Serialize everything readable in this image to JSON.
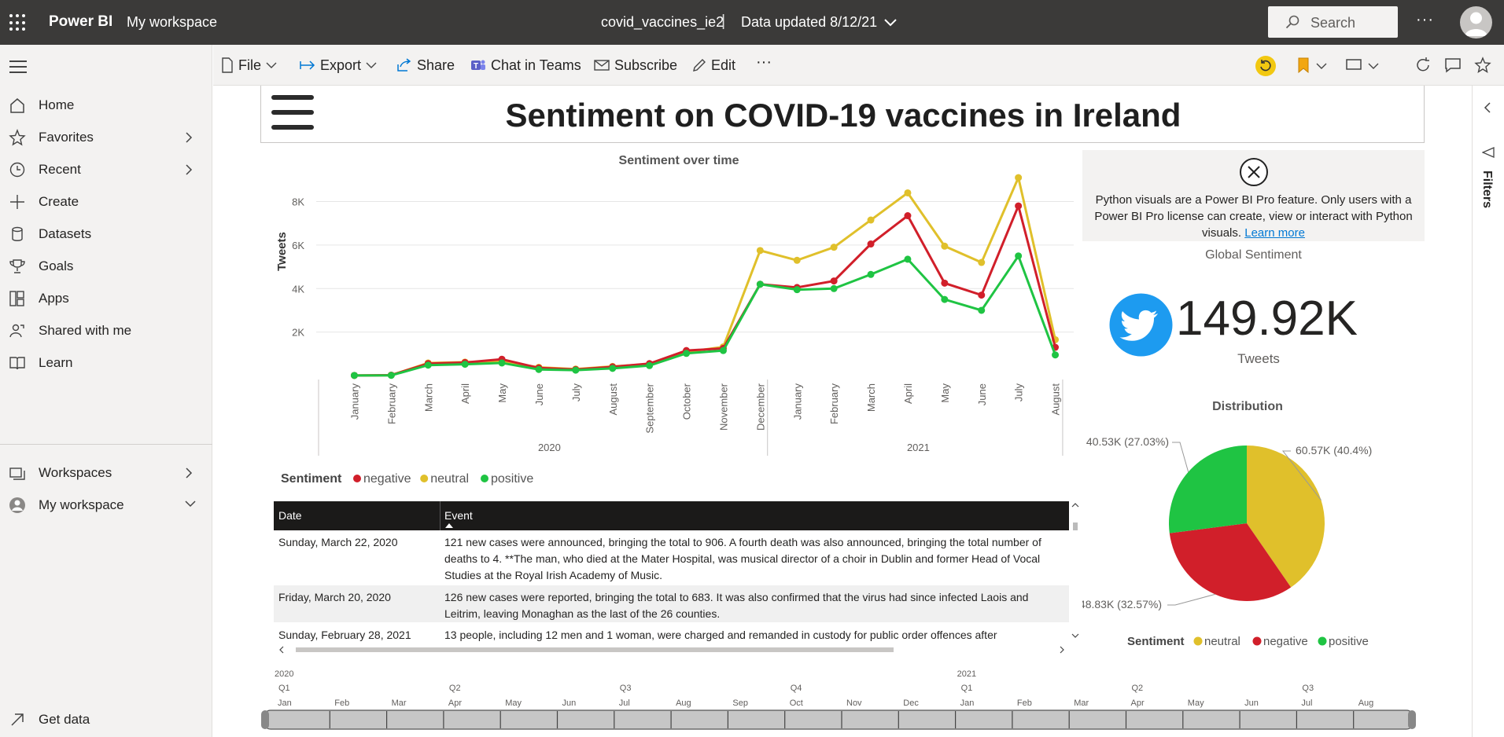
{
  "topbar": {
    "brand": "Power BI",
    "workspace": "My workspace",
    "report_name": "covid_vaccines_ie2",
    "separator": "|",
    "updated": "Data updated 8/12/21",
    "search_placeholder": "Search",
    "more": "···"
  },
  "leftnav": {
    "items": [
      {
        "label": "Home",
        "icon": "home-icon"
      },
      {
        "label": "Favorites",
        "icon": "star-icon"
      },
      {
        "label": "Recent",
        "icon": "clock-icon"
      },
      {
        "label": "Create",
        "icon": "plus-icon"
      },
      {
        "label": "Datasets",
        "icon": "database-icon"
      },
      {
        "label": "Goals",
        "icon": "trophy-icon"
      },
      {
        "label": "Apps",
        "icon": "apps-icon"
      },
      {
        "label": "Shared with me",
        "icon": "shared-icon"
      },
      {
        "label": "Learn",
        "icon": "book-icon"
      }
    ],
    "workspaces": "Workspaces",
    "my_workspace": "My workspace",
    "get_data": "Get data"
  },
  "actionbar": {
    "file": "File",
    "export": "Export",
    "share": "Share",
    "chat": "Chat in Teams",
    "subscribe": "Subscribe",
    "edit": "Edit",
    "more": "···"
  },
  "rightrail": {
    "filters": "Filters"
  },
  "report": {
    "title": "Sentiment on COVID-19 vaccines in Ireland"
  },
  "python_visual": {
    "message": "Python visuals are a Power BI Pro feature. Only users with a Power BI Pro license can create, view or interact with Python visuals.",
    "link": "Learn more"
  },
  "card": {
    "label": "Global Sentiment",
    "value": "149.92K",
    "unit": "Tweets"
  },
  "table": {
    "headers": [
      "Date",
      "Event"
    ],
    "rows": [
      {
        "date": "Sunday, March 22, 2020",
        "event": "121 new cases were announced, bringing the total to 906. A fourth death was also announced, bringing the total number of deaths to 4. **The man, who died at the Mater Hospital, was musical director of a choir in Dublin and former Head of Vocal Studies at the Royal Irish Academy of Music."
      },
      {
        "date": "Friday, March 20, 2020",
        "event": "126 new cases were reported, bringing the total to 683. It was also confirmed that the virus had since infected Laois and Leitrim, leaving Monaghan as the last of the 26 counties."
      },
      {
        "date": "Sunday, February 28, 2021",
        "event": "13 people, including 12 men and 1 woman, were charged and remanded in custody for public order offences after"
      }
    ]
  },
  "colors": {
    "negative": "#d11f2a",
    "neutral": "#e0c02b",
    "positive": "#1fc443",
    "topbar": "#3b3a39"
  },
  "chart_data": [
    {
      "type": "line",
      "title": "Sentiment over time",
      "ylabel": "Tweets",
      "yticks": [
        "2K",
        "4K",
        "6K",
        "8K"
      ],
      "ylim": [
        0,
        9500
      ],
      "x": [
        "January",
        "February",
        "March",
        "April",
        "May",
        "June",
        "July",
        "August",
        "September",
        "October",
        "November",
        "December",
        "January",
        "February",
        "March",
        "April",
        "May",
        "June",
        "July",
        "August"
      ],
      "year_groups": [
        {
          "label": "2020",
          "count": 12
        },
        {
          "label": "2021",
          "count": 8
        }
      ],
      "legend_title": "Sentiment",
      "series": [
        {
          "name": "negative",
          "values": [
            5,
            20,
            550,
            600,
            750,
            350,
            280,
            400,
            550,
            1150,
            1250,
            4200,
            4050,
            4350,
            6050,
            7350,
            4250,
            3700,
            7800,
            1300
          ]
        },
        {
          "name": "neutral",
          "values": [
            5,
            20,
            580,
            620,
            650,
            380,
            300,
            420,
            530,
            1080,
            1320,
            5750,
            5300,
            5900,
            7150,
            8400,
            5950,
            5200,
            9100,
            1650
          ]
        },
        {
          "name": "positive",
          "values": [
            5,
            10,
            480,
            520,
            580,
            280,
            250,
            330,
            460,
            1020,
            1150,
            4200,
            3950,
            4000,
            4650,
            5350,
            3500,
            3000,
            5500,
            950
          ]
        }
      ],
      "grid": true,
      "legend_position": "bottom-left"
    },
    {
      "type": "pie",
      "title": "Distribution",
      "legend_title": "Sentiment",
      "slices": [
        {
          "name": "neutral",
          "value": 60.57,
          "label": "60.57K (40.4%)"
        },
        {
          "name": "negative",
          "value": 48.83,
          "label": "48.83K (32.57%)"
        },
        {
          "name": "positive",
          "value": 40.53,
          "label": "40.53K (27.03%)"
        }
      ],
      "legend_position": "bottom"
    }
  ],
  "timeline": {
    "years": [
      {
        "label": "2020",
        "at": 0
      },
      {
        "label": "2021",
        "at": 12
      }
    ],
    "quarters": [
      {
        "label": "Q1",
        "at": 0
      },
      {
        "label": "Q2",
        "at": 3
      },
      {
        "label": "Q3",
        "at": 6
      },
      {
        "label": "Q4",
        "at": 9
      },
      {
        "label": "Q1",
        "at": 12
      },
      {
        "label": "Q2",
        "at": 15
      },
      {
        "label": "Q3",
        "at": 18
      }
    ],
    "months": [
      "Jan",
      "Feb",
      "Mar",
      "Apr",
      "May",
      "Jun",
      "Jul",
      "Aug",
      "Sep",
      "Oct",
      "Nov",
      "Dec",
      "Jan",
      "Feb",
      "Mar",
      "Apr",
      "May",
      "Jun",
      "Jul",
      "Aug"
    ]
  }
}
